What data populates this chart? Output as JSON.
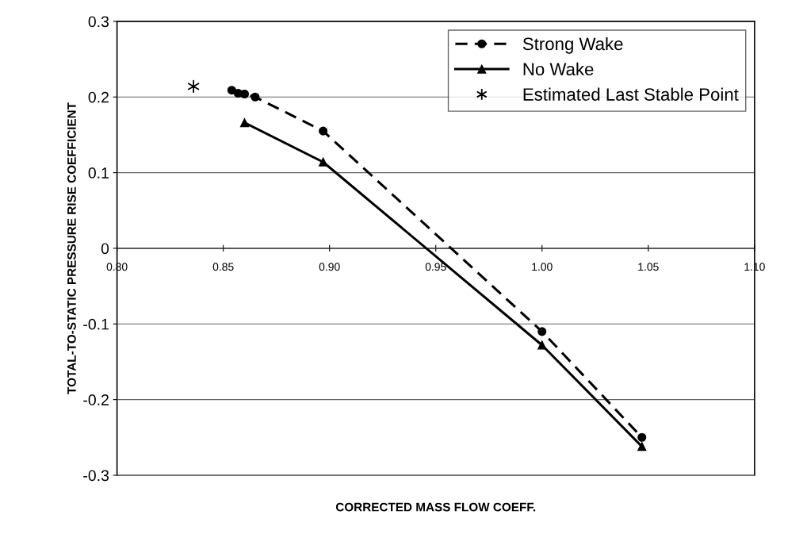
{
  "chart_data": {
    "type": "line",
    "xlabel": "CORRECTED MASS FLOW COEFF.",
    "ylabel": "TOTAL-TO-STATIC PRESSURE RISE COEFFICIENT",
    "xlim": [
      0.8,
      1.1
    ],
    "ylim": [
      -0.3,
      0.3
    ],
    "xticks": [
      {
        "value": 0.8,
        "label": "0.80"
      },
      {
        "value": 0.85,
        "label": "0.85"
      },
      {
        "value": 0.9,
        "label": "0.90"
      },
      {
        "value": 0.95,
        "label": "0.95"
      },
      {
        "value": 1.0,
        "label": "1.00"
      },
      {
        "value": 1.05,
        "label": "1.05"
      },
      {
        "value": 1.1,
        "label": "1.10"
      }
    ],
    "yticks": [
      0.3,
      0.2,
      0.1,
      0,
      -0.1,
      -0.2,
      -0.3
    ],
    "grid": "y",
    "legend": "top right",
    "series": [
      {
        "name": "Strong Wake",
        "color": "#000000",
        "marker": "circle",
        "line_style": "dashed",
        "x": [
          0.854,
          0.857,
          0.86,
          0.865,
          0.897,
          1.0,
          1.047
        ],
        "values": [
          0.209,
          0.205,
          0.204,
          0.2,
          0.155,
          -0.11,
          -0.25
        ]
      },
      {
        "name": "No Wake",
        "color": "#000000",
        "marker": "triangle",
        "line_style": "solid",
        "x": [
          0.86,
          0.897,
          1.0,
          1.047
        ],
        "values": [
          0.166,
          0.114,
          -0.128,
          -0.262
        ]
      },
      {
        "name": "Estimated Last Stable Point",
        "type": "scatter",
        "color": "#000000",
        "marker": "cross",
        "x": [
          0.836
        ],
        "values": [
          0.214
        ]
      }
    ]
  }
}
